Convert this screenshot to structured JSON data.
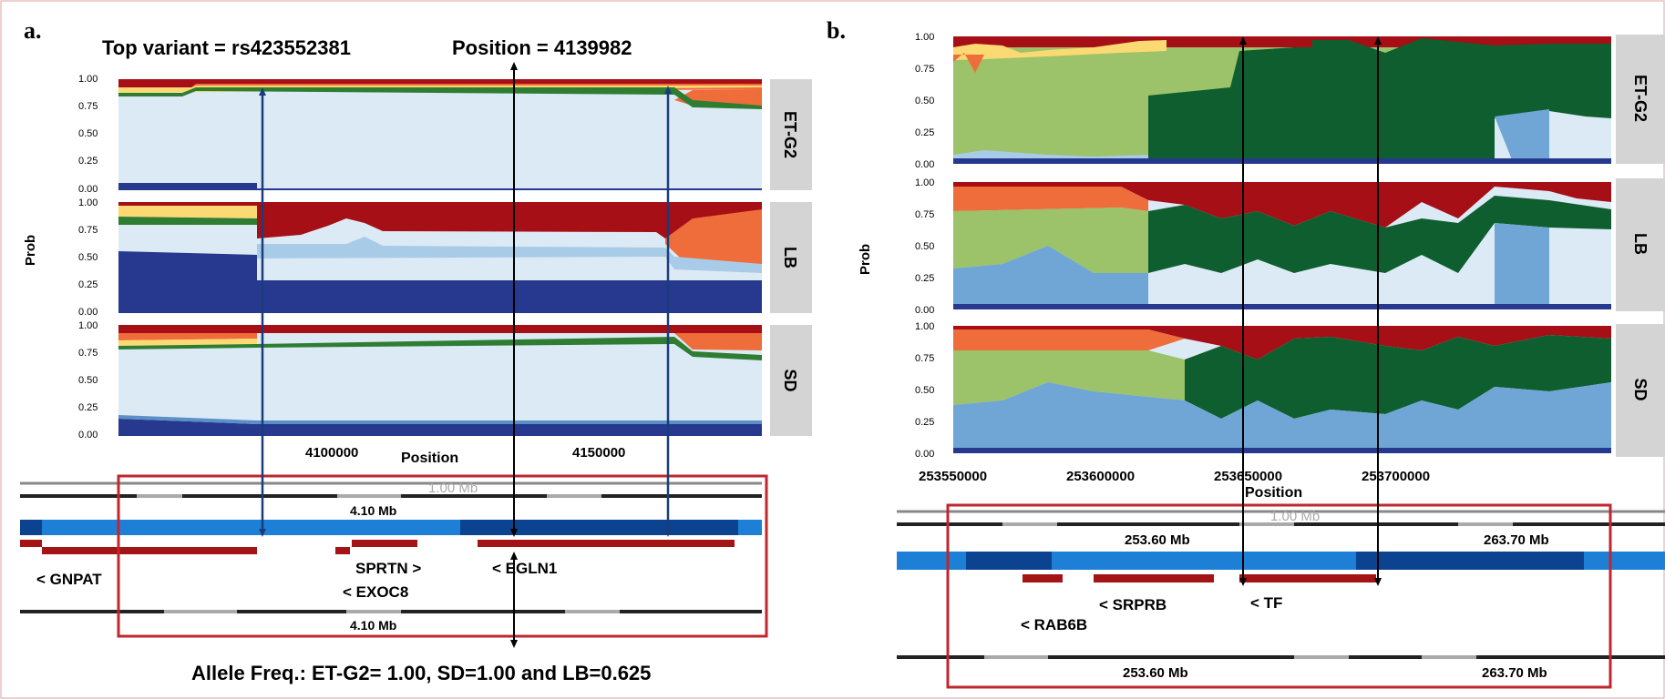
{
  "panel_a": {
    "label": "a.",
    "top_variant": "Top variant = rs423552381",
    "position": "Position = 4139982",
    "y_label": "Prob",
    "x_label": "Position",
    "y_ticks": [
      "1.00",
      "0.75",
      "0.50",
      "0.25",
      "0.00"
    ],
    "x_ticks": [
      "4100000",
      "4150000"
    ],
    "tracks": [
      "ET-G2",
      "LB",
      "SD"
    ],
    "browser": {
      "scale": "1.00 Mb",
      "coord_top": "4.10 Mb",
      "coord_bottom": "4.10 Mb",
      "genes": [
        "< GNPAT",
        "SPRTN >",
        "< EXOC8",
        "<  EGLN1"
      ]
    },
    "caption": "Allele Freq.: ET-G2= 1.00, SD=1.00 and LB=0.625"
  },
  "panel_b": {
    "label": "b.",
    "y_label": "Prob",
    "x_label": "Position",
    "y_ticks": [
      "1.00",
      "0.75",
      "0.50",
      "0.25",
      "0.00"
    ],
    "x_ticks": [
      "253550000",
      "253600000",
      "253650000",
      "253700000"
    ],
    "tracks": [
      "ET-G2",
      "LB",
      "SD"
    ],
    "browser": {
      "scale": "1.00 Mb",
      "coord_left_top": "253.60 Mb",
      "coord_right_top": "263.70 Mb",
      "coord_left_bottom": "253.60 Mb",
      "coord_right_bottom": "263.70 Mb",
      "genes": [
        "< SRPRB",
        "< TF",
        "< RAB6B"
      ]
    }
  },
  "chart_data": [
    {
      "type": "area",
      "panel": "a",
      "xlabel": "Position",
      "ylabel": "Prob",
      "ylim": [
        0,
        1
      ],
      "x_ticks": [
        4100000,
        4150000
      ],
      "facets": [
        {
          "name": "ET-G2",
          "approx_dominant": "light blue",
          "approx_dominant_share": 0.92
        },
        {
          "name": "LB",
          "approx_dominant": "dark red / dark blue",
          "approx_dominant_share": 0.6
        },
        {
          "name": "SD",
          "approx_dominant": "light blue",
          "approx_dominant_share": 0.8
        }
      ]
    },
    {
      "type": "area",
      "panel": "b",
      "xlabel": "Position",
      "ylabel": "Prob",
      "ylim": [
        0,
        1
      ],
      "x_ticks": [
        253550000,
        253600000,
        253650000,
        253700000
      ],
      "facets": [
        {
          "name": "ET-G2",
          "approx_dominant": "dark green / light green"
        },
        {
          "name": "LB",
          "approx_dominant": "mixed"
        },
        {
          "name": "SD",
          "approx_dominant": "mixed"
        }
      ]
    }
  ],
  "colors": {
    "red": "#a50f15",
    "orange": "#ef6c3b",
    "yellow": "#fbd973",
    "lightblue": "#dceaf5",
    "darkblue": "#26398f",
    "darkgreen": "#0f5e2f",
    "lightgreen": "#9cc26a",
    "boxred": "#c0262d",
    "strip": "#d4d4d4",
    "gene": "#a41414",
    "chrom": "#1d7fd6",
    "chromdark": "#0b4391"
  }
}
